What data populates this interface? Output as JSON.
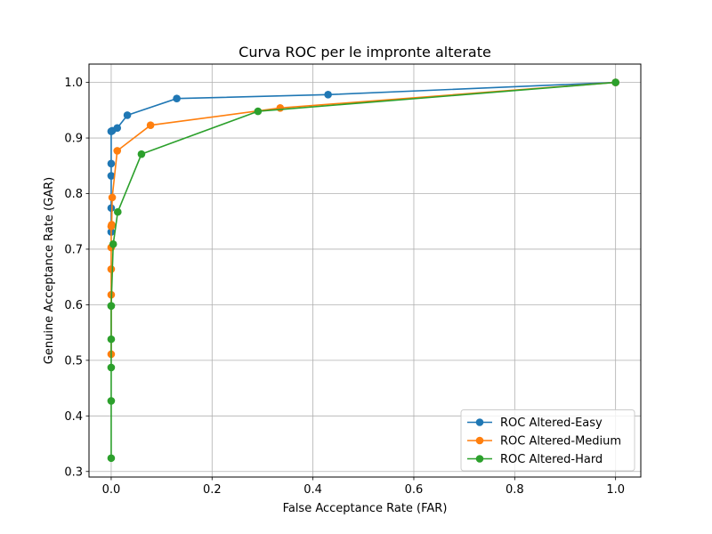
{
  "chart_data": {
    "type": "line",
    "title": "Curva ROC per le impronte alterate",
    "xlabel": "False Acceptance Rate (FAR)",
    "ylabel": "Genuine Acceptance Rate (GAR)",
    "xlim": [
      -0.044,
      1.05
    ],
    "ylim": [
      0.29,
      1.033
    ],
    "xticks": [
      0.0,
      0.2,
      0.4,
      0.6,
      0.8,
      1.0
    ],
    "xtick_labels": [
      "0.0",
      "0.2",
      "0.4",
      "0.6",
      "0.8",
      "1.0"
    ],
    "yticks": [
      0.3,
      0.4,
      0.5,
      0.6,
      0.7,
      0.8,
      0.9,
      1.0
    ],
    "ytick_labels": [
      "0.3",
      "0.4",
      "0.5",
      "0.6",
      "0.7",
      "0.8",
      "0.9",
      "1.0"
    ],
    "grid": true,
    "legend_position": "lower-right",
    "series": [
      {
        "name": "ROC Altered-Easy",
        "color": "#1f77b4",
        "x": [
          0.0,
          0.0,
          0.0,
          0.0,
          0.0,
          0.002,
          0.012,
          0.032,
          0.13,
          0.43,
          1.0
        ],
        "y": [
          0.731,
          0.774,
          0.832,
          0.854,
          0.912,
          0.913,
          0.918,
          0.941,
          0.971,
          0.978,
          1.0
        ]
      },
      {
        "name": "ROC Altered-Medium",
        "color": "#ff7f0e",
        "x": [
          0.0,
          0.0,
          0.0,
          0.0,
          0.0,
          0.001,
          0.002,
          0.012,
          0.078,
          0.335,
          1.0
        ],
        "y": [
          0.511,
          0.618,
          0.664,
          0.703,
          0.741,
          0.744,
          0.793,
          0.877,
          0.923,
          0.954,
          1.0
        ]
      },
      {
        "name": "ROC Altered-Hard",
        "color": "#2ca02c",
        "x": [
          0.0,
          0.0,
          0.0,
          0.0,
          0.0,
          0.0,
          0.004,
          0.013,
          0.06,
          0.291,
          1.0
        ],
        "y": [
          0.324,
          0.427,
          0.487,
          0.538,
          0.598,
          0.598,
          0.709,
          0.767,
          0.871,
          0.948,
          1.0
        ]
      }
    ]
  }
}
